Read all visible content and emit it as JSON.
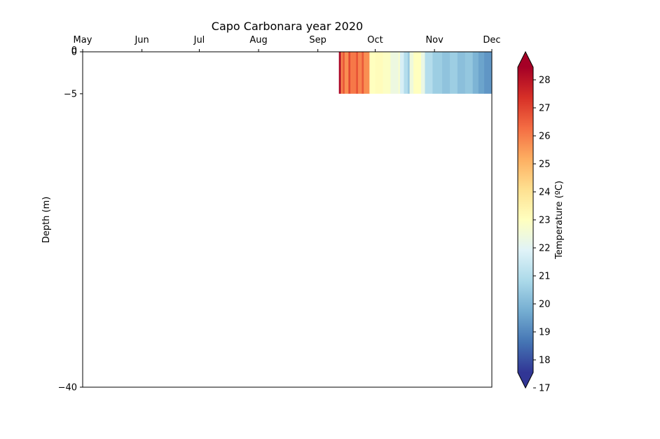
{
  "chart_data": {
    "type": "heatmap",
    "title": "Capo Carbonara year 2020",
    "ylabel": "Depth (m)",
    "x_ticks": [
      "May",
      "Jun",
      "Jul",
      "Aug",
      "Sep",
      "Oct",
      "Nov",
      "Dec"
    ],
    "x_range": [
      "2020-05-01",
      "2020-12-01"
    ],
    "x_axis_position": "top",
    "y_ticks": [
      0,
      -5,
      -40
    ],
    "y_tick_labels": [
      "0",
      "−5",
      "−40"
    ],
    "y_top_duplicate_label": "0",
    "ylim": [
      -40,
      0
    ],
    "grid": false,
    "colorbar": {
      "label": "Temperature (ºC)",
      "min": 17,
      "max": 29,
      "extend": "both",
      "ticks": [
        17,
        18,
        19,
        20,
        21,
        22,
        23,
        24,
        25,
        26,
        27,
        28
      ],
      "colormap": "RdYlBu_r"
    },
    "series": [
      {
        "depth_range_m": [
          -5,
          0
        ],
        "segments": [
          {
            "start": "2020-09-12",
            "end": "2020-09-13",
            "temperature": 28.8
          },
          {
            "start": "2020-09-13",
            "end": "2020-09-14",
            "temperature": 26.2
          },
          {
            "start": "2020-09-14",
            "end": "2020-09-15",
            "temperature": 27.0
          },
          {
            "start": "2020-09-15",
            "end": "2020-09-17",
            "temperature": 26.0
          },
          {
            "start": "2020-09-17",
            "end": "2020-09-18",
            "temperature": 27.3
          },
          {
            "start": "2020-09-18",
            "end": "2020-09-21",
            "temperature": 26.4
          },
          {
            "start": "2020-09-21",
            "end": "2020-09-22",
            "temperature": 27.1
          },
          {
            "start": "2020-09-22",
            "end": "2020-09-24",
            "temperature": 26.2
          },
          {
            "start": "2020-09-24",
            "end": "2020-09-25",
            "temperature": 27.0
          },
          {
            "start": "2020-09-25",
            "end": "2020-09-28",
            "temperature": 26.0
          },
          {
            "start": "2020-09-28",
            "end": "2020-10-01",
            "temperature": 23.0
          },
          {
            "start": "2020-10-01",
            "end": "2020-10-05",
            "temperature": 23.1
          },
          {
            "start": "2020-10-05",
            "end": "2020-10-09",
            "temperature": 22.9
          },
          {
            "start": "2020-10-09",
            "end": "2020-10-13",
            "temperature": 22.3
          },
          {
            "start": "2020-10-13",
            "end": "2020-10-14",
            "temperature": 22.6
          },
          {
            "start": "2020-10-14",
            "end": "2020-10-16",
            "temperature": 21.6
          },
          {
            "start": "2020-10-16",
            "end": "2020-10-18",
            "temperature": 20.8
          },
          {
            "start": "2020-10-18",
            "end": "2020-10-19",
            "temperature": 20.2
          },
          {
            "start": "2020-10-19",
            "end": "2020-10-21",
            "temperature": 22.4
          },
          {
            "start": "2020-10-21",
            "end": "2020-10-25",
            "temperature": 23.0
          },
          {
            "start": "2020-10-25",
            "end": "2020-10-27",
            "temperature": 22.2
          },
          {
            "start": "2020-10-27",
            "end": "2020-10-31",
            "temperature": 20.8
          },
          {
            "start": "2020-10-31",
            "end": "2020-11-05",
            "temperature": 20.3
          },
          {
            "start": "2020-11-05",
            "end": "2020-11-09",
            "temperature": 20.0
          },
          {
            "start": "2020-11-09",
            "end": "2020-11-13",
            "temperature": 20.3
          },
          {
            "start": "2020-11-13",
            "end": "2020-11-17",
            "temperature": 19.9
          },
          {
            "start": "2020-11-17",
            "end": "2020-11-21",
            "temperature": 20.1
          },
          {
            "start": "2020-11-21",
            "end": "2020-11-24",
            "temperature": 19.6
          },
          {
            "start": "2020-11-24",
            "end": "2020-11-27",
            "temperature": 19.2
          },
          {
            "start": "2020-11-27",
            "end": "2020-12-01",
            "temperature": 18.9
          }
        ]
      }
    ]
  }
}
